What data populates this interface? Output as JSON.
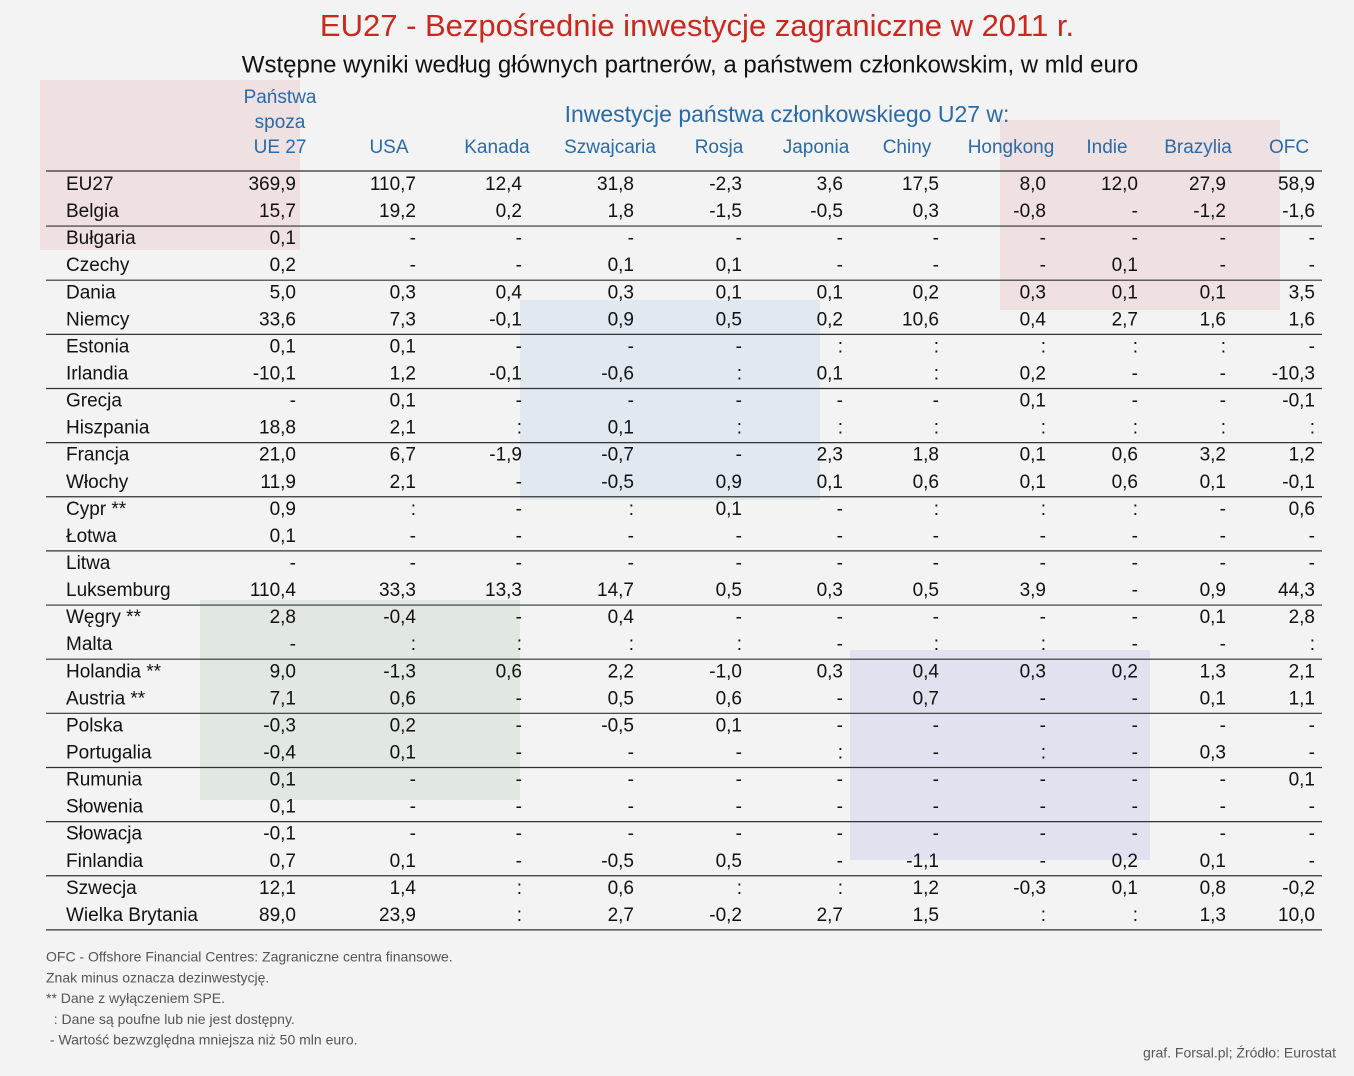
{
  "title": "EU27 - Bezpośrednie inwestycje zagraniczne w 2011 r.",
  "subtitle": "Wstępne wyniki według głównych partnerów, a państwem członkowskim, w mld euro",
  "group_header": "Inwestycje państwa członkowskiego U27 w:",
  "columns": [
    [
      "Państwa",
      "spoza",
      "UE 27"
    ],
    [
      "USA"
    ],
    [
      "Kanada"
    ],
    [
      "Szwajcaria"
    ],
    [
      "Rosja"
    ],
    [
      "Japonia"
    ],
    [
      "Chiny"
    ],
    [
      "Hongkong"
    ],
    [
      "Indie"
    ],
    [
      "Brazylia"
    ],
    [
      "OFC"
    ]
  ],
  "rows": [
    [
      "EU27",
      "369,9",
      "110,7",
      "12,4",
      "31,8",
      "-2,3",
      "3,6",
      "17,5",
      "8,0",
      "12,0",
      "27,9",
      "58,9"
    ],
    [
      "Belgia",
      "15,7",
      "19,2",
      "0,2",
      "1,8",
      "-1,5",
      "-0,5",
      "0,3",
      "-0,8",
      "-",
      "-1,2",
      "-1,6"
    ],
    [
      "Bułgaria",
      "0,1",
      "-",
      "-",
      "-",
      "-",
      "-",
      "-",
      "-",
      "-",
      "-",
      "-"
    ],
    [
      "Czechy",
      "0,2",
      "-",
      "-",
      "0,1",
      "0,1",
      "-",
      "-",
      "-",
      "0,1",
      "-",
      "-"
    ],
    [
      "Dania",
      "5,0",
      "0,3",
      "0,4",
      "0,3",
      "0,1",
      "0,1",
      "0,2",
      "0,3",
      "0,1",
      "0,1",
      "3,5"
    ],
    [
      "Niemcy",
      "33,6",
      "7,3",
      "-0,1",
      "0,9",
      "0,5",
      "0,2",
      "10,6",
      "0,4",
      "2,7",
      "1,6",
      "1,6"
    ],
    [
      "Estonia",
      "0,1",
      "0,1",
      "-",
      "-",
      "-",
      ":",
      ":",
      ":",
      ":",
      ":",
      "-"
    ],
    [
      "Irlandia",
      "-10,1",
      "1,2",
      "-0,1",
      "-0,6",
      ":",
      "0,1",
      ":",
      "0,2",
      "-",
      "-",
      "-10,3"
    ],
    [
      "Grecja",
      "-",
      "0,1",
      "-",
      "-",
      "-",
      "-",
      "-",
      "0,1",
      "-",
      "-",
      "-0,1"
    ],
    [
      "Hiszpania",
      "18,8",
      "2,1",
      ":",
      "0,1",
      ":",
      ":",
      ":",
      ":",
      ":",
      ":",
      ":"
    ],
    [
      "Francja",
      "21,0",
      "6,7",
      "-1,9",
      "-0,7",
      "-",
      "2,3",
      "1,8",
      "0,1",
      "0,6",
      "3,2",
      "1,2"
    ],
    [
      "Włochy",
      "11,9",
      "2,1",
      "-",
      "-0,5",
      "0,9",
      "0,1",
      "0,6",
      "0,1",
      "0,6",
      "0,1",
      "-0,1"
    ],
    [
      "Cypr **",
      "0,9",
      ":",
      "-",
      ":",
      "0,1",
      "-",
      ":",
      ":",
      ":",
      "-",
      "0,6"
    ],
    [
      "Łotwa",
      "0,1",
      "-",
      "-",
      "-",
      "-",
      "-",
      "-",
      "-",
      "-",
      "-",
      "-"
    ],
    [
      "Litwa",
      "-",
      "-",
      "-",
      "-",
      "-",
      "-",
      "-",
      "-",
      "-",
      "-",
      "-"
    ],
    [
      "Luksemburg",
      "110,4",
      "33,3",
      "13,3",
      "14,7",
      "0,5",
      "0,3",
      "0,5",
      "3,9",
      "-",
      "0,9",
      "44,3"
    ],
    [
      "Węgry **",
      "2,8",
      "-0,4",
      "-",
      "0,4",
      "-",
      "-",
      "-",
      "-",
      "-",
      "0,1",
      "2,8"
    ],
    [
      "Malta",
      "-",
      ":",
      ":",
      ":",
      ":",
      "-",
      ":",
      ":",
      "-",
      "-",
      ":"
    ],
    [
      "Holandia **",
      "9,0",
      "-1,3",
      "0,6",
      "2,2",
      "-1,0",
      "0,3",
      "0,4",
      "0,3",
      "0,2",
      "1,3",
      "2,1"
    ],
    [
      "Austria **",
      "7,1",
      "0,6",
      "-",
      "0,5",
      "0,6",
      "-",
      "0,7",
      "-",
      "-",
      "0,1",
      "1,1"
    ],
    [
      "Polska",
      "-0,3",
      "0,2",
      "-",
      "-0,5",
      "0,1",
      "-",
      "-",
      "-",
      "-",
      "-",
      "-"
    ],
    [
      "Portugalia",
      "-0,4",
      "0,1",
      "-",
      "-",
      "-",
      ":",
      "-",
      ":",
      "-",
      "0,3",
      "-"
    ],
    [
      "Rumunia",
      "0,1",
      "-",
      "-",
      "-",
      "-",
      "-",
      "-",
      "-",
      "-",
      "-",
      "0,1"
    ],
    [
      "Słowenia",
      "0,1",
      "-",
      "-",
      "-",
      "-",
      "-",
      "-",
      "-",
      "-",
      "-",
      "-"
    ],
    [
      "Słowacja",
      "-0,1",
      "-",
      "-",
      "-",
      "-",
      "-",
      "-",
      "-",
      "-",
      "-",
      "-"
    ],
    [
      "Finlandia",
      "0,7",
      "0,1",
      "-",
      "-0,5",
      "0,5",
      "-",
      "-1,1",
      "-",
      "0,2",
      "0,1",
      "-"
    ],
    [
      "Szwecja",
      "12,1",
      "1,4",
      ":",
      "0,6",
      ":",
      ":",
      "1,2",
      "-0,3",
      "0,1",
      "0,8",
      "-0,2"
    ],
    [
      "Wielka Brytania",
      "89,0",
      "23,9",
      ":",
      "2,7",
      "-0,2",
      "2,7",
      "1,5",
      ":",
      ":",
      "1,3",
      "10,0"
    ]
  ],
  "footnotes": [
    "OFC - Offshore Financial Centres: Zagraniczne centra finansowe.",
    "Znak minus oznacza dezinwestycję.",
    "** Dane z wyłączeniem SPE.",
    "  : Dane są poufne lub nie jest dostępny.",
    " - Wartość bezwzględna mniejsza niż 50 mln euro."
  ],
  "source": "graf. Forsal.pl; Źródło: Eurostat"
}
